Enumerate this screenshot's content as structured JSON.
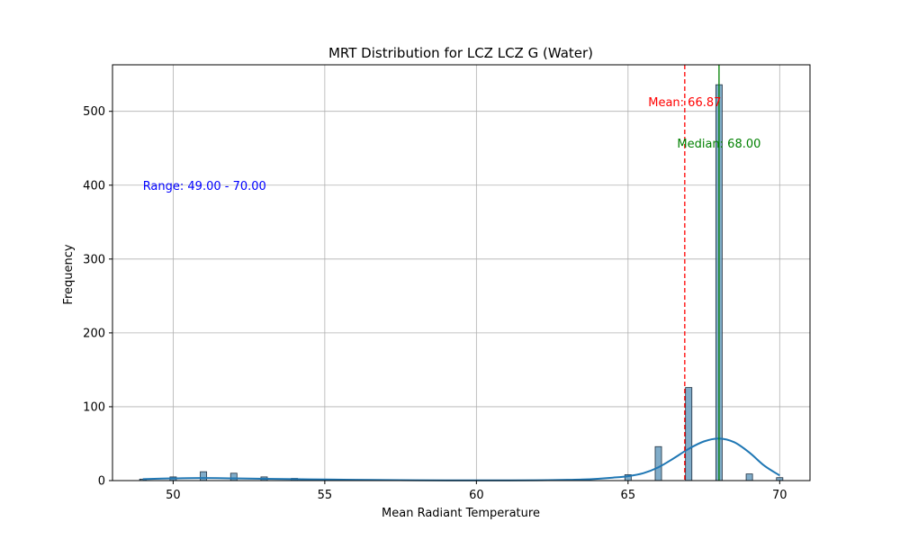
{
  "chart_data": {
    "type": "bar",
    "title": "MRT Distribution for LCZ LCZ G (Water)",
    "xlabel": "Mean Radiant Temperature",
    "ylabel": "Frequency",
    "xlim": [
      48,
      71
    ],
    "ylim": [
      0,
      563
    ],
    "xticks": [
      50,
      55,
      60,
      65,
      70
    ],
    "yticks": [
      0,
      100,
      200,
      300,
      400,
      500
    ],
    "grid": true,
    "bin_width": 0.21,
    "bins": [
      {
        "x": 49,
        "count": 2
      },
      {
        "x": 50,
        "count": 5
      },
      {
        "x": 51,
        "count": 12
      },
      {
        "x": 52,
        "count": 10
      },
      {
        "x": 53,
        "count": 5
      },
      {
        "x": 54,
        "count": 3
      },
      {
        "x": 65,
        "count": 8
      },
      {
        "x": 66,
        "count": 46
      },
      {
        "x": 67,
        "count": 126
      },
      {
        "x": 68,
        "count": 536
      },
      {
        "x": 69,
        "count": 9
      },
      {
        "x": 70,
        "count": 4
      }
    ],
    "kde": {
      "x": [
        49,
        50,
        51,
        52,
        53,
        54,
        55,
        56,
        57,
        58,
        59,
        60,
        61,
        62,
        63,
        63.5,
        64,
        64.5,
        65,
        65.5,
        66,
        66.5,
        67,
        67.5,
        68,
        68.5,
        69,
        69.5,
        70
      ],
      "y": [
        2,
        3,
        3.5,
        3,
        2.5,
        2,
        1.5,
        1,
        0.8,
        0.5,
        0.3,
        0.3,
        0.3,
        0.5,
        1,
        1.5,
        2.5,
        4,
        6,
        10,
        18,
        30,
        43,
        53,
        57,
        52,
        38,
        20,
        7
      ]
    },
    "bar_color": "#6a9ec0",
    "bar_edge": "#1f2f3f",
    "kde_color": "#1f77b4",
    "mean": {
      "value": 66.87,
      "label": "Mean: 66.87",
      "color": "#ff0000"
    },
    "median": {
      "value": 68.0,
      "label": "Median: 68.00",
      "color": "#008000"
    },
    "range": {
      "label": "Range: 49.00 - 70.00",
      "color": "#0000ff"
    }
  }
}
